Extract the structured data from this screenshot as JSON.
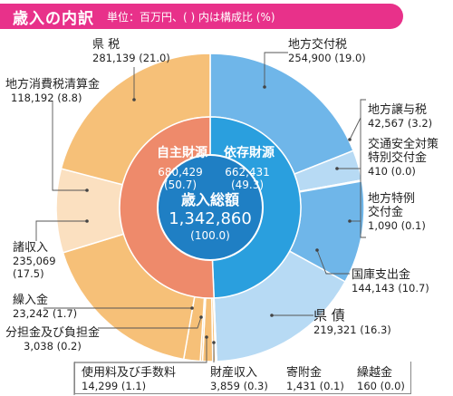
{
  "header": {
    "title": "歳入の内訳",
    "unit_note": "単位：百万円、( ) 内は構成比 (%)"
  },
  "center": {
    "title": "歳入総額",
    "value": "1,342,860",
    "pct": "(100.0)"
  },
  "colors": {
    "header": "#e8318a",
    "center": "#1f7fc4",
    "own_inner": "#ee8a6b",
    "dep_inner": "#2a9fde",
    "own_outer_a": "#f6c078",
    "own_outer_b": "#fbe0c0",
    "dep_outer_a": "#6fb6e9",
    "dep_outer_b": "#b7daf4"
  },
  "chart_data": {
    "type": "pie",
    "title": "歳入の内訳",
    "unit": "百万円",
    "total": {
      "label": "歳入総額",
      "value": 1342860,
      "pct": 100.0
    },
    "inner_ring": [
      {
        "name": "自主財源",
        "value": 680429,
        "pct": 50.7,
        "value_text": "680,429",
        "pct_text": "(50.7)"
      },
      {
        "name": "依存財源",
        "value": 662431,
        "pct": 49.3,
        "value_text": "662,431",
        "pct_text": "(49.3)"
      }
    ],
    "outer_ring": [
      {
        "name": "地方交付税",
        "group": "依存財源",
        "value": 254900,
        "pct": 19.0,
        "value_text": "254,900 (19.0)"
      },
      {
        "name": "地方譲与税",
        "group": "依存財源",
        "value": 42567,
        "pct": 3.2,
        "value_text": "42,567 (3.2)"
      },
      {
        "name": "交通安全対策特別交付金",
        "name_lines": [
          "交通安全対策",
          "特別交付金"
        ],
        "group": "依存財源",
        "value": 410,
        "pct": 0.0,
        "value_text": "410 (0.0)"
      },
      {
        "name": "地方特例交付金",
        "name_lines": [
          "地方特例",
          "交付金"
        ],
        "group": "依存財源",
        "value": 1090,
        "pct": 0.1,
        "value_text": "1,090 (0.1)"
      },
      {
        "name": "国庫支出金",
        "group": "依存財源",
        "value": 144143,
        "pct": 10.7,
        "value_text": "144,143 (10.7)"
      },
      {
        "name": "県 債",
        "group": "依存財源",
        "value": 219321,
        "pct": 16.3,
        "value_text": "219,321 (16.3)"
      },
      {
        "name": "繰越金",
        "group": "自主財源",
        "value": 160,
        "pct": 0.0,
        "value_text": "160 (0.0)"
      },
      {
        "name": "寄附金",
        "group": "自主財源",
        "value": 1431,
        "pct": 0.1,
        "value_text": "1,431 (0.1)"
      },
      {
        "name": "財産収入",
        "group": "自主財源",
        "value": 3859,
        "pct": 0.3,
        "value_text": "3,859 (0.3)"
      },
      {
        "name": "使用料及び手数料",
        "group": "自主財源",
        "value": 14299,
        "pct": 1.1,
        "value_text": "14,299 (1.1)"
      },
      {
        "name": "分担金及び負担金",
        "group": "自主財源",
        "value": 3038,
        "pct": 0.2,
        "value_text": "3,038 (0.2)"
      },
      {
        "name": "繰入金",
        "group": "自主財源",
        "value": 23242,
        "pct": 1.7,
        "value_text": "23,242 (1.7)"
      },
      {
        "name": "諸収入",
        "group": "自主財源",
        "value": 235069,
        "pct": 17.5,
        "value_text_lines": [
          "235,069",
          "(17.5)"
        ]
      },
      {
        "name": "地方消費税清算金",
        "group": "自主財源",
        "value": 118192,
        "pct": 8.8,
        "value_text": "118,192 (8.8)"
      },
      {
        "name": "県 税",
        "group": "自主財源",
        "value": 281139,
        "pct": 21.0,
        "value_text": "281,139 (21.0)"
      }
    ]
  }
}
